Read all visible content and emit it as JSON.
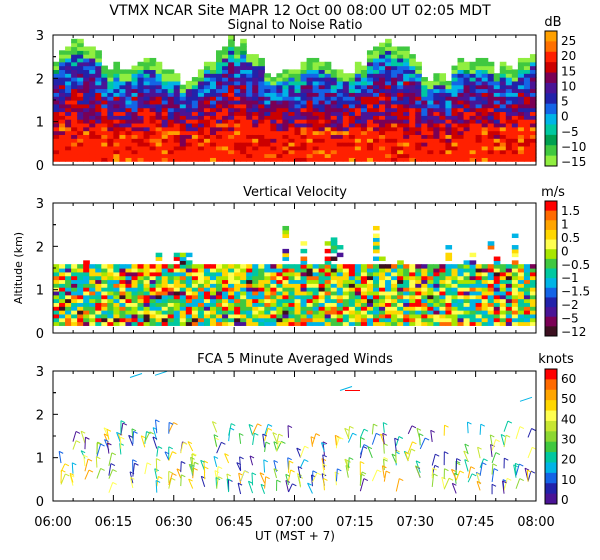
{
  "header": "VTMX   NCAR Site   MAPR 12 Oct 00   08:00 UT   02:05   MDT",
  "chart_data": [
    {
      "type": "heatmap",
      "title": "Signal to Noise Ratio",
      "xlabel": "",
      "ylabel": "",
      "ylim": [
        0,
        3
      ],
      "yticks": [
        "0",
        "1",
        "2",
        "3"
      ],
      "colorbar": {
        "unit": "dB",
        "labels": [
          "25",
          "20",
          "15",
          "10",
          "5",
          "0",
          "−5",
          "−10",
          "−15"
        ],
        "colors": [
          "#ffa000",
          "#ff7000",
          "#ff2000",
          "#cc0000",
          "#7a0055",
          "#4a1496",
          "#2222aa",
          "#1464e6",
          "#00b4e6",
          "#00c8a0",
          "#00a050",
          "#40c840",
          "#90ee40"
        ]
      }
    },
    {
      "type": "heatmap",
      "title": "Vertical Velocity",
      "xlabel": "",
      "ylabel": "Altitude (km)",
      "ylim": [
        0,
        3
      ],
      "yticks": [
        "0",
        "1",
        "2",
        "3"
      ],
      "colorbar": {
        "unit": "m/s",
        "labels": [
          "1.5",
          "1",
          "0.5",
          "0",
          "−0.5",
          "−1",
          "−1.5",
          "−2",
          "−5",
          "−12"
        ],
        "colors": [
          "#ff0000",
          "#ff6a00",
          "#ffa500",
          "#ffd700",
          "#ffff50",
          "#a8e600",
          "#40c840",
          "#00c8a0",
          "#00b4e6",
          "#1464e6",
          "#2222aa",
          "#4a1496",
          "#7a0055",
          "#3c1020"
        ]
      }
    },
    {
      "type": "scatter",
      "title": "FCA 5 Minute Averaged Winds",
      "xlabel": "UT  (MST + 7)",
      "ylabel": "",
      "ylim": [
        0,
        3
      ],
      "yticks": [
        "0",
        "1",
        "2",
        "3"
      ],
      "xticks": [
        "06:00",
        "06:15",
        "06:30",
        "06:45",
        "07:00",
        "07:15",
        "07:30",
        "07:45",
        "08:00"
      ],
      "colorbar": {
        "unit": "knots",
        "labels": [
          "60",
          "50",
          "40",
          "30",
          "20",
          "10",
          "0"
        ],
        "colors": [
          "#ff0000",
          "#ff6a00",
          "#ffa500",
          "#ffd700",
          "#ffff50",
          "#c8e632",
          "#8cd732",
          "#40c840",
          "#00c8a0",
          "#00b4e6",
          "#1464e6",
          "#2222aa",
          "#4a1496"
        ]
      }
    }
  ]
}
